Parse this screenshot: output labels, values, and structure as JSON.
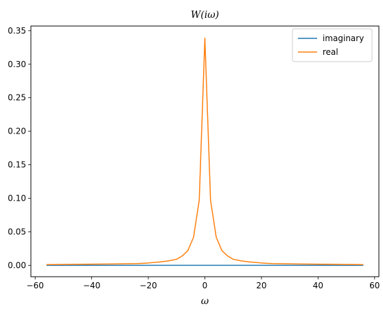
{
  "chart_data": {
    "type": "line",
    "title": "W(iω)",
    "xlabel": "ω",
    "ylabel": "",
    "xlim": [
      -61.5,
      61.5
    ],
    "ylim": [
      -0.017,
      0.357
    ],
    "xticks": [
      -60,
      -40,
      -20,
      0,
      20,
      40,
      60
    ],
    "xtick_labels": [
      "−60",
      "−40",
      "−20",
      "0",
      "20",
      "40",
      "60"
    ],
    "yticks": [
      0.0,
      0.05,
      0.1,
      0.15,
      0.2,
      0.25,
      0.3,
      0.35
    ],
    "ytick_labels": [
      "0.00",
      "0.05",
      "0.10",
      "0.15",
      "0.20",
      "0.25",
      "0.30",
      "0.35"
    ],
    "grid": false,
    "legend_position": "top-right",
    "series": [
      {
        "name": "imaginary",
        "color": "#1f77b4",
        "x": [
          -56,
          -40,
          -24,
          -16,
          -8,
          -2,
          0,
          2,
          8,
          16,
          24,
          40,
          56
        ],
        "y": [
          0,
          0,
          0,
          0,
          0,
          0,
          0,
          0,
          0,
          0,
          0,
          0,
          0
        ]
      },
      {
        "name": "real",
        "color": "#ff7f0e",
        "x": [
          -56,
          -44,
          -32,
          -24,
          -20,
          -16,
          -13,
          -10,
          -8,
          -6,
          -4,
          -2,
          0,
          2,
          4,
          6,
          8,
          10,
          13,
          16,
          20,
          24,
          32,
          44,
          56
        ],
        "y": [
          0.001,
          0.0015,
          0.002,
          0.0025,
          0.0035,
          0.005,
          0.0065,
          0.009,
          0.014,
          0.022,
          0.042,
          0.097,
          0.339,
          0.097,
          0.042,
          0.022,
          0.014,
          0.009,
          0.0065,
          0.005,
          0.0035,
          0.0025,
          0.002,
          0.0015,
          0.001
        ]
      }
    ]
  }
}
